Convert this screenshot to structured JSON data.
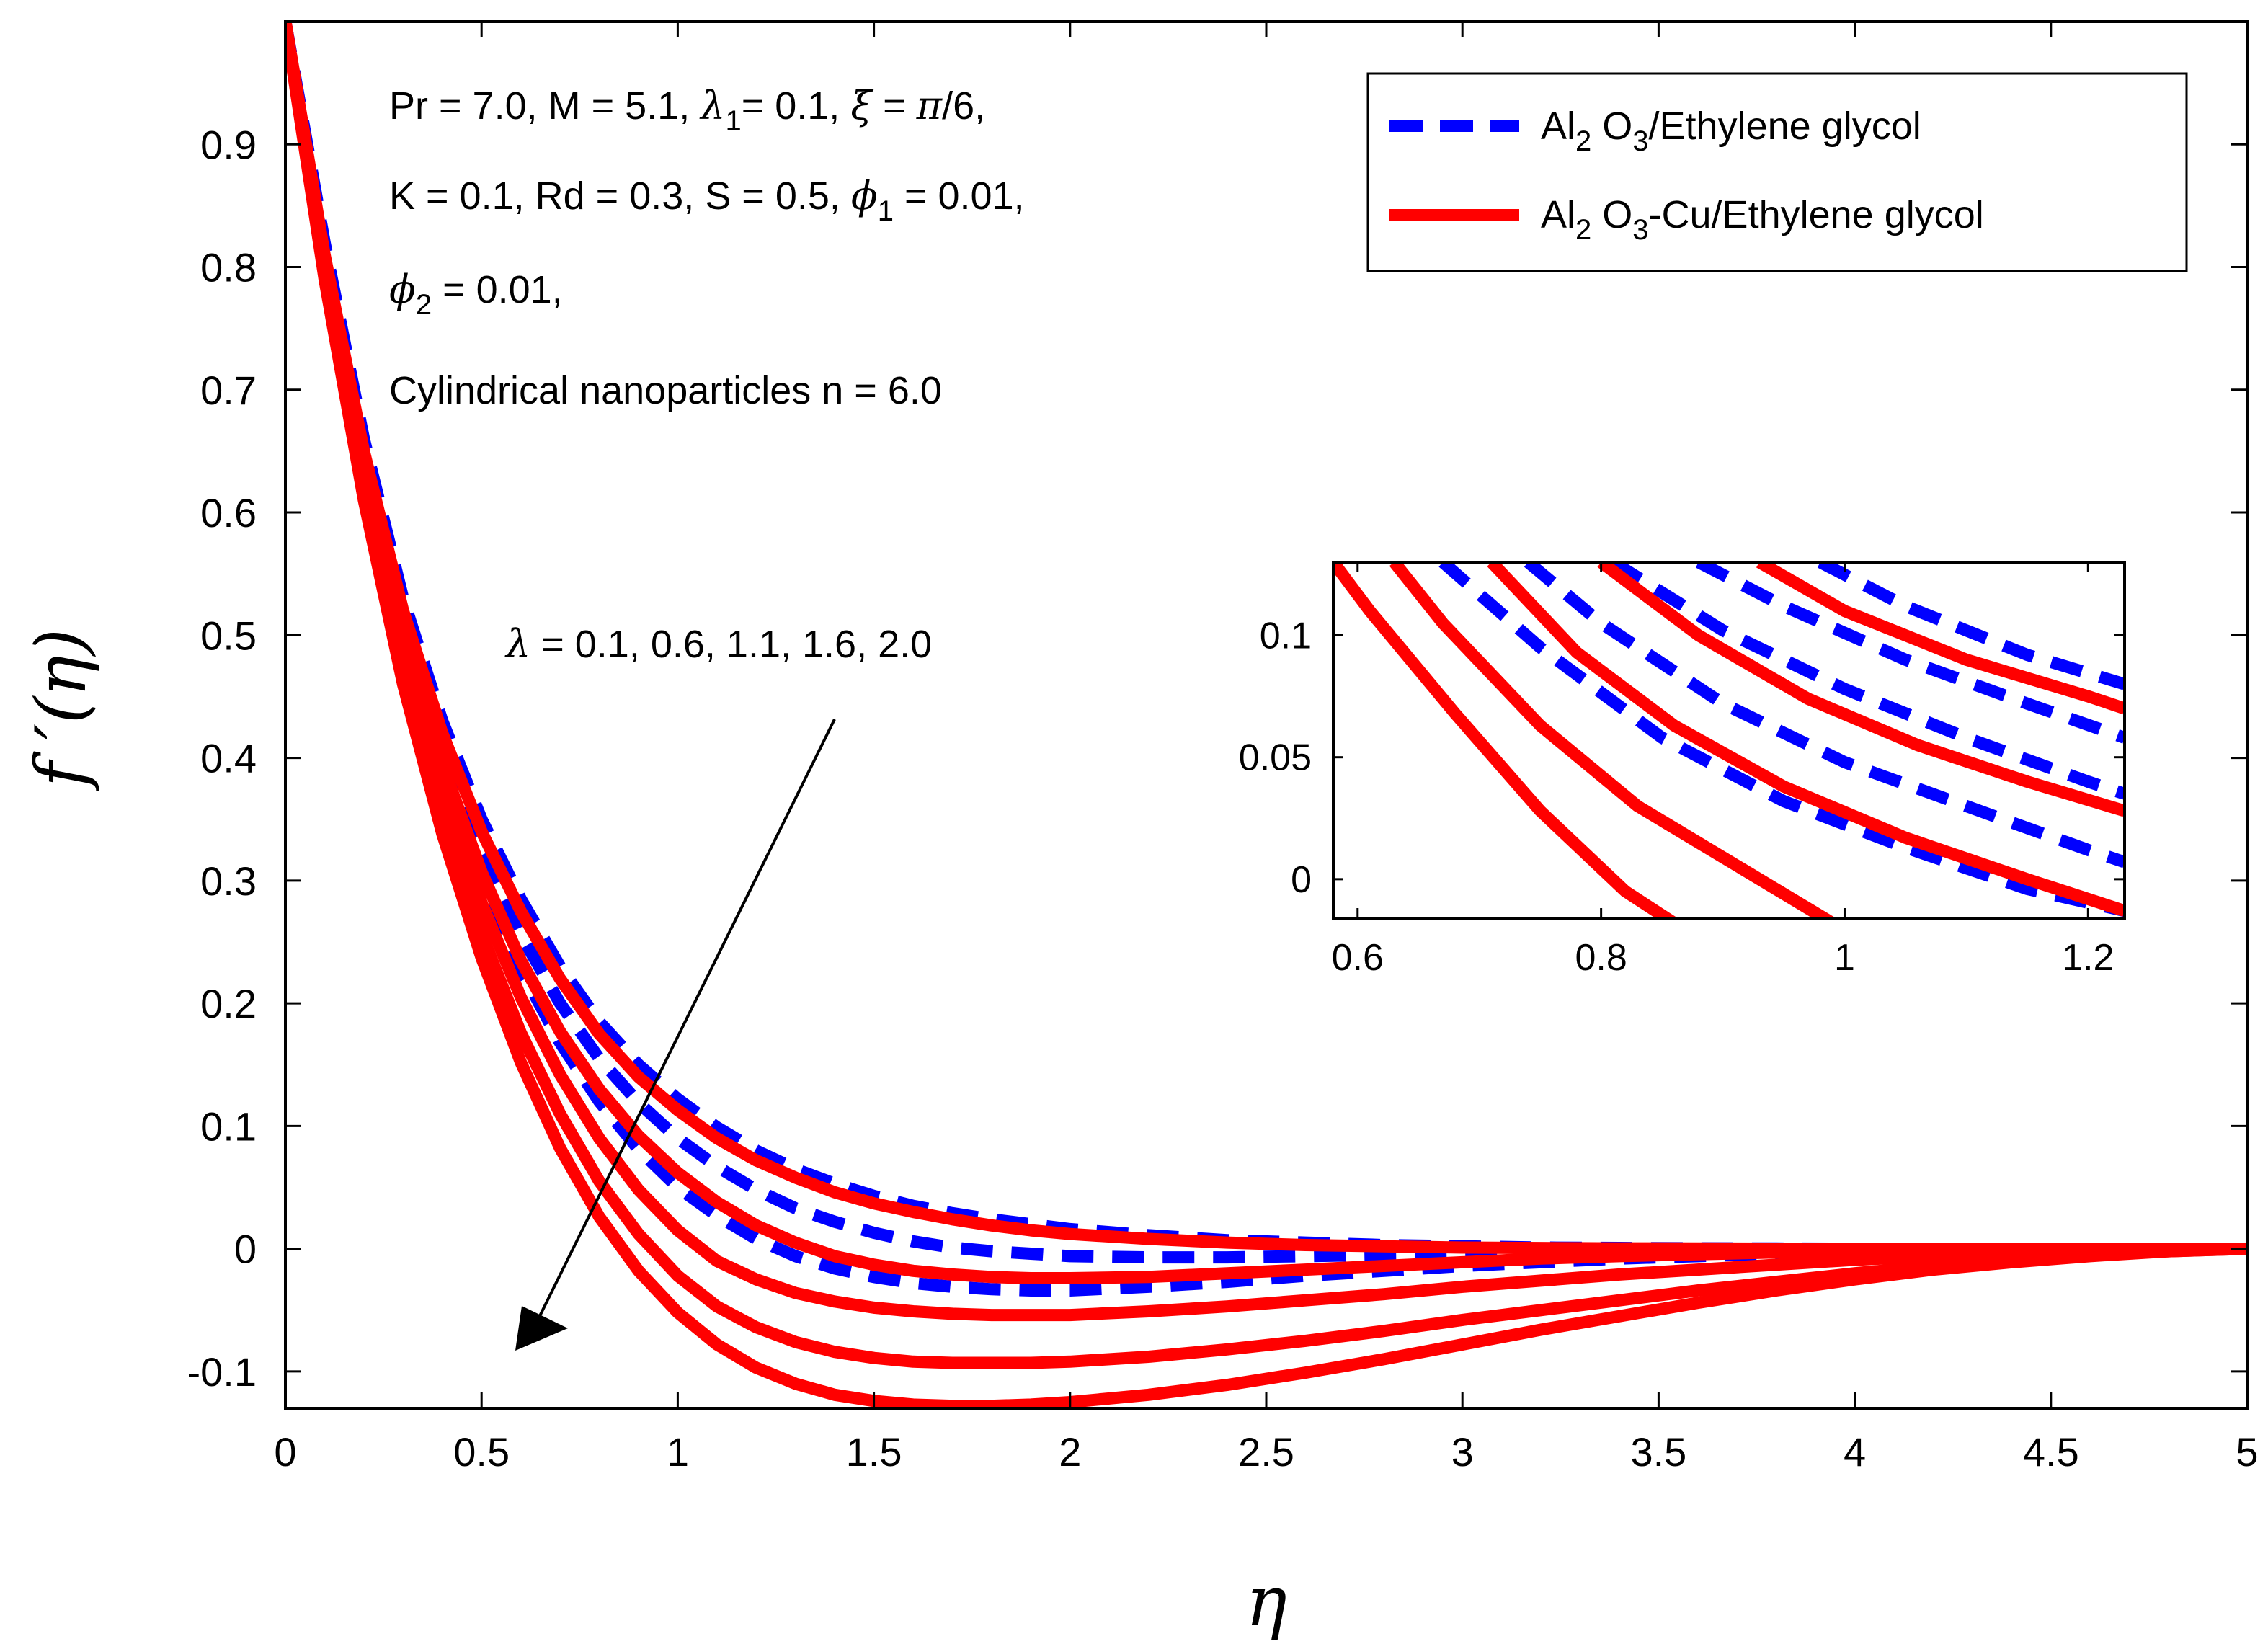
{
  "chart_data": [
    {
      "type": "line",
      "panel": "main",
      "xlabel": "η",
      "ylabel": "f ′(η)",
      "xlim": [
        0,
        5
      ],
      "ylim": [
        -0.13,
        1.0
      ],
      "x_ticks": [
        "0",
        "0.5",
        "1",
        "1.5",
        "2",
        "2.5",
        "3",
        "3.5",
        "4",
        "4.5",
        "5"
      ],
      "y_ticks": [
        "-0.1",
        "0",
        "0.1",
        "0.2",
        "0.3",
        "0.4",
        "0.5",
        "0.6",
        "0.7",
        "0.8",
        "0.9"
      ],
      "x": [
        0,
        0.1,
        0.2,
        0.3,
        0.4,
        0.5,
        0.6,
        0.7,
        0.8,
        0.9,
        1.0,
        1.1,
        1.2,
        1.3,
        1.4,
        1.5,
        1.6,
        1.7,
        1.8,
        1.9,
        2.0,
        2.2,
        2.4,
        2.6,
        2.8,
        3.0,
        3.2,
        3.4,
        3.6,
        3.8,
        4.0,
        4.2,
        4.4,
        4.6,
        4.8,
        5.0
      ],
      "lambda_values": [
        "0.1",
        "0.6",
        "1.1",
        "1.6",
        "2.0"
      ],
      "series": [
        {
          "name": "Al2O3/Ethylene glycol, λ=0.1",
          "style": "dashed",
          "color": "#0000ff",
          "values": [
            1,
            0.82,
            0.66,
            0.53,
            0.43,
            0.35,
            0.285,
            0.23,
            0.185,
            0.15,
            0.122,
            0.099,
            0.08,
            0.065,
            0.053,
            0.043,
            0.035,
            0.029,
            0.024,
            0.02,
            0.016,
            0.011,
            0.007,
            0.005,
            0.003,
            0.002,
            0.001,
            0.0007,
            0.0004,
            0.0002,
            0.0001,
            0,
            0,
            0,
            0,
            0
          ]
        },
        {
          "name": "Al2O3/Ethylene glycol, λ=0.6",
          "style": "dashed",
          "color": "#0000ff",
          "values": [
            1,
            0.815,
            0.65,
            0.515,
            0.41,
            0.325,
            0.256,
            0.2,
            0.155,
            0.119,
            0.09,
            0.067,
            0.048,
            0.033,
            0.022,
            0.013,
            0.006,
            0.001,
            -0.002,
            -0.004,
            -0.006,
            -0.007,
            -0.007,
            -0.006,
            -0.005,
            -0.004,
            -0.003,
            -0.002,
            -0.0015,
            -0.001,
            -0.0006,
            -0.0003,
            -0.0002,
            -0.0001,
            0,
            0
          ]
        },
        {
          "name": "Al2O3/Ethylene glycol, λ=1.1",
          "style": "dashed",
          "color": "#0000ff",
          "values": [
            1,
            0.81,
            0.64,
            0.5,
            0.39,
            0.3,
            0.228,
            0.168,
            0.12,
            0.081,
            0.05,
            0.027,
            0.008,
            -0.006,
            -0.016,
            -0.023,
            -0.028,
            -0.031,
            -0.033,
            -0.034,
            -0.034,
            -0.031,
            -0.027,
            -0.022,
            -0.018,
            -0.014,
            -0.011,
            -0.008,
            -0.006,
            -0.004,
            -0.003,
            -0.002,
            -0.0012,
            -0.0006,
            -0.0002,
            0
          ]
        },
        {
          "name": "Al2O3-Cu/Ethylene glycol, λ=0.1",
          "style": "solid",
          "color": "#ff0000",
          "values": [
            1,
            0.81,
            0.65,
            0.52,
            0.42,
            0.34,
            0.275,
            0.22,
            0.175,
            0.14,
            0.113,
            0.09,
            0.072,
            0.058,
            0.046,
            0.037,
            0.03,
            0.024,
            0.019,
            0.015,
            0.012,
            0.008,
            0.005,
            0.003,
            0.002,
            0.001,
            0.0006,
            0.0003,
            0.0002,
            0.0001,
            0,
            0,
            0,
            0,
            0,
            0
          ]
        },
        {
          "name": "Al2O3-Cu/Ethylene glycol, λ=0.6",
          "style": "solid",
          "color": "#ff0000",
          "values": [
            1,
            0.805,
            0.64,
            0.505,
            0.395,
            0.307,
            0.235,
            0.177,
            0.13,
            0.092,
            0.062,
            0.038,
            0.019,
            0.005,
            -0.006,
            -0.013,
            -0.018,
            -0.021,
            -0.023,
            -0.024,
            -0.024,
            -0.023,
            -0.02,
            -0.017,
            -0.014,
            -0.011,
            -0.008,
            -0.006,
            -0.0045,
            -0.003,
            -0.002,
            -0.0012,
            -0.0007,
            -0.0003,
            -0.0001,
            0
          ]
        },
        {
          "name": "Al2O3-Cu/Ethylene glycol, λ=1.1",
          "style": "solid",
          "color": "#ff0000",
          "values": [
            1,
            0.8,
            0.63,
            0.49,
            0.375,
            0.282,
            0.205,
            0.142,
            0.09,
            0.048,
            0.015,
            -0.01,
            -0.025,
            -0.036,
            -0.043,
            -0.048,
            -0.051,
            -0.053,
            -0.054,
            -0.054,
            -0.054,
            -0.051,
            -0.047,
            -0.042,
            -0.037,
            -0.031,
            -0.026,
            -0.021,
            -0.017,
            -0.013,
            -0.009,
            -0.006,
            -0.004,
            -0.002,
            -0.001,
            0
          ]
        },
        {
          "name": "Al2O3-Cu/Ethylene glycol, λ=1.6",
          "style": "solid",
          "color": "#ff0000",
          "values": [
            1,
            0.795,
            0.62,
            0.475,
            0.355,
            0.257,
            0.176,
            0.11,
            0.055,
            0.012,
            -0.022,
            -0.047,
            -0.064,
            -0.076,
            -0.084,
            -0.089,
            -0.092,
            -0.093,
            -0.093,
            -0.093,
            -0.092,
            -0.088,
            -0.082,
            -0.075,
            -0.067,
            -0.058,
            -0.05,
            -0.042,
            -0.034,
            -0.027,
            -0.02,
            -0.014,
            -0.009,
            -0.005,
            -0.002,
            0
          ]
        },
        {
          "name": "Al2O3-Cu/Ethylene glycol, λ=2.0",
          "style": "solid",
          "color": "#ff0000",
          "values": [
            1,
            0.79,
            0.61,
            0.46,
            0.338,
            0.237,
            0.152,
            0.082,
            0.026,
            -0.018,
            -0.052,
            -0.078,
            -0.097,
            -0.11,
            -0.119,
            -0.124,
            -0.127,
            -0.128,
            -0.128,
            -0.127,
            -0.125,
            -0.119,
            -0.111,
            -0.101,
            -0.09,
            -0.078,
            -0.066,
            -0.055,
            -0.044,
            -0.034,
            -0.025,
            -0.017,
            -0.011,
            -0.006,
            -0.002,
            0
          ]
        }
      ]
    },
    {
      "type": "line",
      "panel": "inset",
      "xlim": [
        0.58,
        1.23
      ],
      "ylim": [
        -0.016,
        0.13
      ],
      "x_ticks": [
        "0.6",
        "0.8",
        "1",
        "1.2"
      ],
      "y_ticks": [
        "0",
        "0.05",
        "0.1"
      ],
      "series": [
        {
          "style": "dashed",
          "color": "#0000ff",
          "x": [
            0.67,
            0.75,
            0.85,
            0.95,
            1.05,
            1.15,
            1.23
          ],
          "values": [
            0.13,
            0.095,
            0.058,
            0.032,
            0.013,
            -0.004,
            -0.013
          ]
        },
        {
          "style": "dashed",
          "color": "#0000ff",
          "x": [
            0.74,
            0.8,
            0.9,
            1.0,
            1.1,
            1.2,
            1.23
          ],
          "values": [
            0.13,
            0.105,
            0.072,
            0.048,
            0.03,
            0.012,
            0.007
          ]
        },
        {
          "style": "dashed",
          "color": "#0000ff",
          "x": [
            0.81,
            0.9,
            1.0,
            1.1,
            1.2,
            1.23
          ],
          "values": [
            0.13,
            0.102,
            0.078,
            0.058,
            0.04,
            0.035
          ]
        },
        {
          "style": "dashed",
          "color": "#0000ff",
          "x": [
            0.88,
            0.95,
            1.05,
            1.15,
            1.23
          ],
          "values": [
            0.13,
            0.112,
            0.09,
            0.072,
            0.058
          ]
        },
        {
          "style": "dashed",
          "color": "#0000ff",
          "x": [
            0.98,
            1.05,
            1.15,
            1.23
          ],
          "values": [
            0.13,
            0.112,
            0.092,
            0.08
          ]
        },
        {
          "style": "solid",
          "color": "#ff0000",
          "x": [
            0.58,
            0.61,
            0.68,
            0.75,
            0.82,
            0.86
          ],
          "values": [
            0.13,
            0.11,
            0.068,
            0.028,
            -0.005,
            -0.018
          ]
        },
        {
          "style": "solid",
          "color": "#ff0000",
          "x": [
            0.63,
            0.67,
            0.75,
            0.83,
            0.92,
            0.99
          ],
          "values": [
            0.13,
            0.105,
            0.063,
            0.03,
            0.003,
            -0.018
          ]
        },
        {
          "style": "solid",
          "color": "#ff0000",
          "x": [
            0.71,
            0.78,
            0.86,
            0.95,
            1.05,
            1.15,
            1.23
          ],
          "values": [
            0.13,
            0.093,
            0.063,
            0.038,
            0.017,
            0,
            -0.013
          ]
        },
        {
          "style": "solid",
          "color": "#ff0000",
          "x": [
            0.8,
            0.88,
            0.97,
            1.06,
            1.15,
            1.23
          ],
          "values": [
            0.13,
            0.1,
            0.074,
            0.055,
            0.04,
            0.028
          ]
        },
        {
          "style": "solid",
          "color": "#ff0000",
          "x": [
            0.93,
            1.0,
            1.1,
            1.2,
            1.23
          ],
          "values": [
            0.13,
            0.11,
            0.09,
            0.075,
            0.07
          ]
        }
      ]
    }
  ],
  "annotations": {
    "params_line1_a": "Pr = 7.0, M = 5.1, ",
    "params_line1_lambda": "λ",
    "params_line1_sub": "1",
    "params_line1_b": "= 0.1, ",
    "params_line1_xi": "ξ",
    "params_line1_c": " = ",
    "params_line1_pi": "π",
    "params_line1_d": "/6,",
    "params_line2_a": "K = 0.1, Rd = 0.3, S = 0.5, ",
    "params_line2_phi": "ϕ",
    "params_line2_sub": "1",
    "params_line2_b": " = 0.01,",
    "params_line3_phi": "ϕ",
    "params_line3_sub": "2",
    "params_line3_b": " = 0.01,",
    "params_line4": "Cylindrical nanoparticles n = 6.0",
    "lambda_sym": "λ",
    "lambda_text": " = 0.1, 0.6, 1.1, 1.6, 2.0"
  },
  "legend": {
    "entry1_a": "Al",
    "entry1_sub1": "2",
    "entry1_b": " O",
    "entry1_sub2": "3",
    "entry1_c": "/Ethylene glycol",
    "entry2_a": "Al",
    "entry2_sub1": "2",
    "entry2_b": " O",
    "entry2_sub2": "3",
    "entry2_c": "-Cu/Ethylene glycol",
    "dashed_color": "#0000ff",
    "solid_color": "#ff0000"
  }
}
